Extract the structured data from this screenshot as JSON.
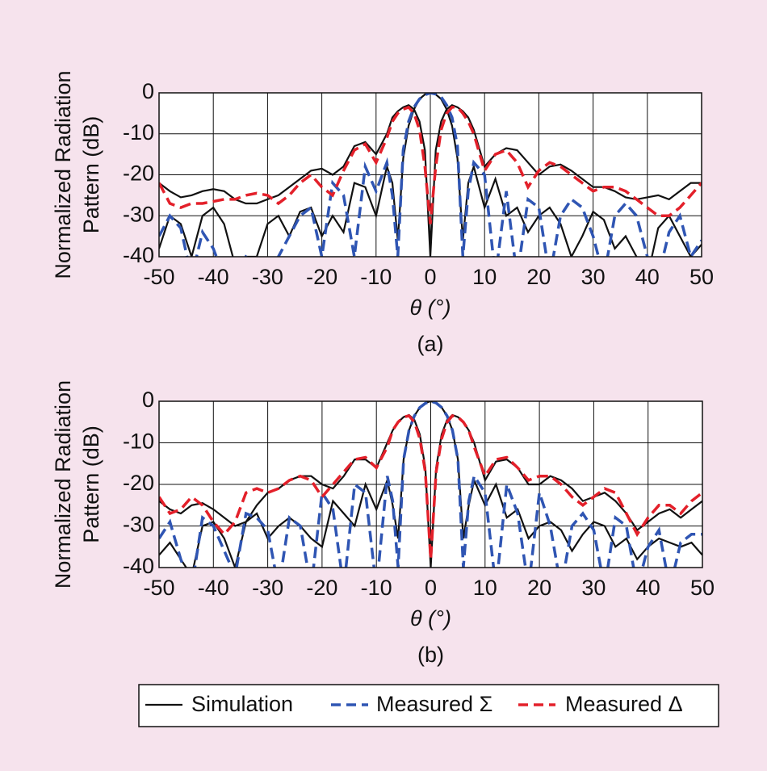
{
  "legend": [
    {
      "name": "Simulation",
      "color": "#111111",
      "dash": "solid"
    },
    {
      "name": "Measured Σ",
      "color": "#2f55b3",
      "dash": "dashed"
    },
    {
      "name": "Measured Δ",
      "color": "#e3202a",
      "dash": "dashed"
    }
  ],
  "chart_data": [
    {
      "type": "line",
      "ylabel": [
        "Normalized Radiation",
        "Pattern (dB)"
      ],
      "xlabel": "θ (°)",
      "caption": "(a)",
      "x": [
        -50,
        -48,
        -46,
        -44,
        -42,
        -40,
        -38,
        -36,
        -34,
        -32,
        -30,
        -28,
        -26,
        -24,
        -22,
        -20,
        -18,
        -16,
        -14,
        -12,
        -10,
        -8,
        -7,
        -6,
        -5,
        -4,
        -3,
        -2,
        -1,
        0,
        1,
        2,
        3,
        4,
        5,
        6,
        7,
        8,
        10,
        12,
        14,
        16,
        18,
        20,
        22,
        24,
        26,
        28,
        30,
        32,
        34,
        36,
        38,
        40,
        42,
        44,
        46,
        48,
        50
      ],
      "xlim": [
        -50,
        50
      ],
      "xticks": [
        -50,
        -40,
        -30,
        -20,
        -10,
        0,
        10,
        20,
        30,
        40,
        50
      ],
      "ylim": [
        -40,
        0
      ],
      "yticks": [
        -40,
        -30,
        -20,
        -10,
        0
      ],
      "grid": true,
      "series": [
        {
          "color": "#111111",
          "dash": "solid",
          "values": [
            -22,
            -24,
            -25.5,
            -25,
            -24,
            -23.5,
            -24,
            -26,
            -27,
            -27,
            -26,
            -25,
            -23,
            -21,
            -19,
            -18.5,
            -20,
            -18,
            -13,
            -12,
            -15,
            -10,
            -6,
            -4.5,
            -3.5,
            -3,
            -4,
            -7,
            -14,
            -40,
            -14,
            -7,
            -4,
            -3,
            -3.5,
            -4.5,
            -6,
            -9,
            -18,
            -15,
            -13.5,
            -14,
            -17,
            -20,
            -18,
            -17.5,
            -19,
            -21,
            -23,
            -23,
            -24,
            -25.5,
            -26,
            -25.5,
            -25,
            -26,
            -24,
            -22,
            -22
          ]
        },
        {
          "color": "#111111",
          "dash": "solid",
          "values": [
            -38,
            -30,
            -32,
            -40,
            -30,
            -28,
            -32,
            -42,
            -40,
            -40,
            -32,
            -30,
            -35,
            -29,
            -28,
            -35,
            -30,
            -34,
            -22,
            -23,
            -30,
            -18,
            -22,
            -36,
            -16,
            -8,
            -4,
            -1.5,
            -0.4,
            0,
            -0.4,
            -1.5,
            -4,
            -8,
            -16,
            -36,
            -22,
            -18,
            -28,
            -21,
            -30,
            -28,
            -34,
            -30,
            -28,
            -32,
            -40,
            -35,
            -29,
            -31,
            -38,
            -35,
            -40,
            -45,
            -33,
            -30,
            -35,
            -40,
            -37
          ]
        },
        {
          "color": "#2f55b3",
          "dash": "dashed",
          "values": [
            -35,
            -30,
            -33,
            -45,
            -34,
            -38,
            -45,
            -45,
            -40,
            -42,
            -45,
            -40,
            -35,
            -30,
            -28,
            -40,
            -22,
            -25,
            -40,
            -18,
            -24,
            -17,
            -25,
            -40,
            -14,
            -7,
            -3.5,
            -1.5,
            -0.5,
            0,
            -0.3,
            -1,
            -3,
            -6,
            -13,
            -40,
            -24,
            -17,
            -20,
            -45,
            -24,
            -45,
            -26,
            -28,
            -45,
            -30,
            -26,
            -28,
            -35,
            -45,
            -30,
            -27,
            -30,
            -40,
            -45,
            -34,
            -30,
            -40,
            -36
          ]
        },
        {
          "color": "#e3202a",
          "dash": "dashed",
          "values": [
            -22,
            -27,
            -28,
            -27,
            -27,
            -26.5,
            -26,
            -26,
            -25,
            -24.5,
            -25,
            -27,
            -25,
            -22,
            -20,
            -23,
            -25,
            -19,
            -14,
            -12.5,
            -17,
            -11,
            -7,
            -5,
            -4,
            -3.5,
            -5,
            -9,
            -18,
            -32,
            -18,
            -9,
            -5,
            -3.5,
            -3.5,
            -5,
            -7,
            -10,
            -19,
            -15,
            -14,
            -17,
            -23,
            -19,
            -17,
            -18,
            -20,
            -22,
            -24,
            -23,
            -23,
            -24,
            -26,
            -28,
            -30,
            -30,
            -28,
            -25,
            -22
          ]
        }
      ]
    },
    {
      "type": "line",
      "ylabel": [
        "Normalized Radiation",
        "Pattern (dB)"
      ],
      "xlabel": "θ (°)",
      "caption": "(b)",
      "x": [
        -50,
        -48,
        -46,
        -44,
        -42,
        -40,
        -38,
        -36,
        -34,
        -32,
        -30,
        -28,
        -26,
        -24,
        -22,
        -20,
        -18,
        -16,
        -14,
        -12,
        -10,
        -8,
        -7,
        -6,
        -5,
        -4,
        -3,
        -2,
        -1,
        0,
        1,
        2,
        3,
        4,
        5,
        6,
        7,
        8,
        10,
        12,
        14,
        16,
        18,
        20,
        22,
        24,
        26,
        28,
        30,
        32,
        34,
        36,
        38,
        40,
        42,
        44,
        46,
        48,
        50
      ],
      "xlim": [
        -50,
        50
      ],
      "xticks": [
        -50,
        -40,
        -30,
        -20,
        -10,
        0,
        10,
        20,
        30,
        40,
        50
      ],
      "ylim": [
        -40,
        0
      ],
      "yticks": [
        -40,
        -30,
        -20,
        -10,
        0
      ],
      "grid": true,
      "series": [
        {
          "color": "#111111",
          "dash": "solid",
          "values": [
            -24,
            -26,
            -27,
            -25,
            -24.5,
            -26,
            -28,
            -30,
            -29,
            -25,
            -22,
            -21,
            -19,
            -18,
            -18,
            -20,
            -21,
            -18,
            -14,
            -14,
            -16,
            -10,
            -7,
            -5,
            -3.8,
            -3.3,
            -4.5,
            -8,
            -16,
            -40,
            -16,
            -8,
            -4.5,
            -3.3,
            -3.8,
            -5,
            -7,
            -10,
            -19,
            -14.5,
            -14,
            -16,
            -20,
            -20,
            -18,
            -19,
            -21,
            -24,
            -23,
            -22,
            -24,
            -27,
            -31,
            -29,
            -27,
            -26,
            -28,
            -26,
            -24
          ]
        },
        {
          "color": "#111111",
          "dash": "solid",
          "values": [
            -37,
            -34,
            -38,
            -42,
            -30,
            -29,
            -33,
            -40,
            -29,
            -27,
            -33,
            -30,
            -28,
            -30,
            -33,
            -35,
            -24,
            -27,
            -30,
            -20,
            -26,
            -19,
            -25,
            -33,
            -14,
            -7,
            -3.5,
            -1.5,
            -0.4,
            0,
            -0.4,
            -1.5,
            -3.5,
            -7,
            -14,
            -33,
            -25,
            -19,
            -25,
            -20,
            -28,
            -26,
            -33,
            -30,
            -29,
            -31,
            -36,
            -32,
            -29,
            -30,
            -35,
            -33,
            -38,
            -35,
            -33,
            -34,
            -35,
            -34,
            -37
          ]
        },
        {
          "color": "#2f55b3",
          "dash": "dashed",
          "values": [
            -33,
            -29,
            -38,
            -45,
            -28,
            -30,
            -36,
            -42,
            -27,
            -28,
            -31,
            -45,
            -28,
            -30,
            -45,
            -22,
            -26,
            -45,
            -20,
            -22,
            -45,
            -18,
            -24,
            -40,
            -14,
            -7,
            -3.5,
            -1.5,
            -0.5,
            0,
            -0.4,
            -1.5,
            -3.5,
            -7,
            -14,
            -40,
            -24,
            -18,
            -22,
            -45,
            -20,
            -27,
            -45,
            -22,
            -30,
            -45,
            -30,
            -27,
            -31,
            -45,
            -28,
            -30,
            -45,
            -35,
            -31,
            -45,
            -34,
            -32,
            -32
          ]
        },
        {
          "color": "#e3202a",
          "dash": "dashed",
          "values": [
            -23,
            -27,
            -26,
            -23,
            -25,
            -29,
            -32,
            -29,
            -22,
            -21,
            -22,
            -21,
            -19,
            -18,
            -19,
            -23,
            -20,
            -17,
            -14,
            -13.5,
            -16,
            -11,
            -7,
            -5,
            -3.8,
            -3.5,
            -5,
            -9,
            -17,
            -38,
            -17,
            -9,
            -5,
            -3.5,
            -3.8,
            -5,
            -7,
            -11,
            -18,
            -14,
            -13.5,
            -16,
            -19,
            -18,
            -18,
            -20,
            -23,
            -25,
            -23,
            -21,
            -22,
            -27,
            -32,
            -28,
            -25,
            -25,
            -27,
            -24,
            -22
          ]
        }
      ]
    }
  ]
}
